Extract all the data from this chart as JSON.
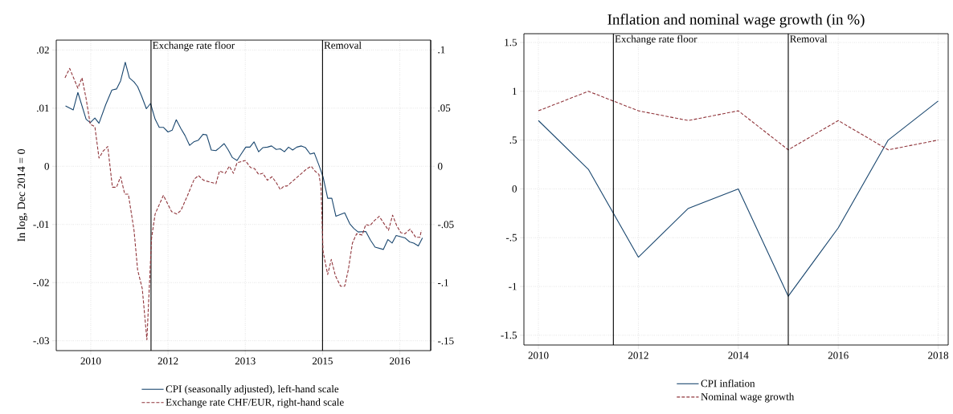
{
  "chart_data": [
    {
      "type": "line",
      "ylabel": "In log, Dec 2014 = 0",
      "xlim": [
        2009.83,
        2017.1
      ],
      "ylim": [
        -0.0317,
        0.0217
      ],
      "y2lim": [
        -0.1583,
        0.1083
      ],
      "xticks": [
        {
          "value": 2010.5,
          "label": "2010"
        },
        {
          "value": 2012,
          "label": "2012"
        },
        {
          "value": 2013.5,
          "label": "2013"
        },
        {
          "value": 2015,
          "label": "2015"
        },
        {
          "value": 2016.5,
          "label": "2016"
        }
      ],
      "yticks": [
        {
          "value": -0.03,
          "label": "-.03"
        },
        {
          "value": -0.02,
          "label": "-.02"
        },
        {
          "value": -0.01,
          "label": "-.01"
        },
        0,
        {
          "value": 0.01,
          "label": ".01"
        },
        {
          "value": 0.02,
          "label": ".02"
        }
      ],
      "y2ticks": [
        {
          "value": -0.15,
          "label": "-.15"
        },
        {
          "value": -0.1,
          "label": "-.1"
        },
        {
          "value": -0.05,
          "label": "-.05"
        },
        0,
        {
          "value": 0.05,
          "label": ".05"
        },
        {
          "value": 0.1,
          "label": ".1"
        }
      ],
      "grid": true,
      "legend": "bottom",
      "ref_lines": [
        {
          "axis": "x",
          "value": 2011.67,
          "label": "Exchange rate floor"
        },
        {
          "axis": "x",
          "value": 2015.0,
          "label": "Removal"
        }
      ],
      "series": [
        {
          "name": "CPI (seasonally adjusted), left-hand scale",
          "color": "#1a476f",
          "line_style": "solid",
          "x": [
            2010.01,
            2010.16,
            2010.25,
            2010.41,
            2010.49,
            2010.58,
            2010.66,
            2010.79,
            2010.91,
            2011.0,
            2011.08,
            2011.17,
            2011.25,
            2011.34,
            2011.41,
            2011.49,
            2011.58,
            2011.66,
            2011.75,
            2011.83,
            2011.91,
            2012.0,
            2012.08,
            2012.16,
            2012.25,
            2012.33,
            2012.42,
            2012.5,
            2012.59,
            2012.68,
            2012.75,
            2012.84,
            2012.93,
            2013.0,
            2013.09,
            2013.17,
            2013.25,
            2013.34,
            2013.42,
            2013.51,
            2013.59,
            2013.67,
            2013.76,
            2013.84,
            2013.93,
            2014.01,
            2014.1,
            2014.18,
            2014.26,
            2014.34,
            2014.42,
            2014.5,
            2014.59,
            2014.67,
            2014.76,
            2014.84,
            2014.93,
            2015.01,
            2015.1,
            2015.18,
            2015.26,
            2015.43,
            2015.53,
            2015.61,
            2015.69,
            2015.84,
            2015.93,
            2016.02,
            2016.18,
            2016.27,
            2016.35,
            2016.43,
            2016.6,
            2016.69,
            2016.77,
            2016.86,
            2016.94
          ],
          "values": [
            0.0104,
            0.0097,
            0.0127,
            0.0081,
            0.0075,
            0.0083,
            0.0074,
            0.0106,
            0.0131,
            0.0133,
            0.0147,
            0.0179,
            0.0152,
            0.0145,
            0.0137,
            0.012,
            0.0099,
            0.0108,
            0.0081,
            0.0067,
            0.0067,
            0.0059,
            0.0062,
            0.008,
            0.0065,
            0.0053,
            0.0036,
            0.0042,
            0.0045,
            0.0055,
            0.0054,
            0.0028,
            0.0027,
            0.0032,
            0.0039,
            0.0028,
            0.0015,
            0.001,
            0.0021,
            0.0033,
            0.0033,
            0.0042,
            0.0025,
            0.0032,
            0.0033,
            0.0035,
            0.0029,
            0.003,
            0.0025,
            0.0033,
            0.0028,
            0.0033,
            0.0035,
            0.0032,
            0.0021,
            0.0023,
            0.0002,
            -0.0018,
            -0.0055,
            -0.0055,
            -0.0086,
            -0.008,
            -0.0099,
            -0.0107,
            -0.0113,
            -0.0112,
            -0.0127,
            -0.0139,
            -0.0143,
            -0.0126,
            -0.0132,
            -0.0119,
            -0.0123,
            -0.013,
            -0.0132,
            -0.0137,
            -0.0123
          ]
        },
        {
          "name": "Exchange rate CHF/EUR, right-hand scale",
          "color": "#90353b",
          "line_style": "dashed",
          "axis": "y2",
          "x": [
            2010.0,
            2010.09,
            2010.25,
            2010.33,
            2010.41,
            2010.49,
            2010.58,
            2010.66,
            2010.74,
            2010.83,
            2010.92,
            2011.0,
            2011.08,
            2011.16,
            2011.23,
            2011.34,
            2011.41,
            2011.5,
            2011.59,
            2011.68,
            2011.75,
            2011.91,
            2012.07,
            2012.17,
            2012.25,
            2012.38,
            2012.51,
            2012.59,
            2012.69,
            2012.93,
            2013.0,
            2013.11,
            2013.19,
            2013.27,
            2013.34,
            2013.42,
            2013.5,
            2013.6,
            2013.68,
            2013.76,
            2013.84,
            2013.93,
            2014.02,
            2014.1,
            2014.18,
            2014.25,
            2014.31,
            2014.44,
            2014.57,
            2014.7,
            2014.78,
            2014.85,
            2014.93,
            2014.97,
            2015.01,
            2015.1,
            2015.17,
            2015.25,
            2015.35,
            2015.43,
            2015.5,
            2015.58,
            2015.66,
            2015.77,
            2015.84,
            2015.92,
            2016.0,
            2016.1,
            2016.19,
            2016.28,
            2016.36,
            2016.44,
            2016.52,
            2016.6,
            2016.7,
            2016.81,
            2016.89,
            2016.92
          ],
          "values": [
            0.076,
            0.084,
            0.067,
            0.076,
            0.058,
            0.036,
            0.034,
            0.007,
            0.013,
            0.017,
            -0.018,
            -0.018,
            -0.009,
            -0.024,
            -0.024,
            -0.055,
            -0.089,
            -0.105,
            -0.149,
            -0.062,
            -0.041,
            -0.025,
            -0.039,
            -0.041,
            -0.038,
            -0.025,
            -0.011,
            -0.008,
            -0.012,
            -0.015,
            -0.004,
            -0.006,
            0.0,
            -0.006,
            0.003,
            0.004,
            0.005,
            -0.001,
            -0.002,
            -0.007,
            -0.006,
            -0.012,
            -0.009,
            -0.014,
            -0.02,
            -0.017,
            -0.017,
            -0.012,
            -0.007,
            -0.002,
            0.0,
            -0.004,
            -0.007,
            -0.018,
            -0.073,
            -0.093,
            -0.08,
            -0.094,
            -0.103,
            -0.103,
            -0.089,
            -0.066,
            -0.058,
            -0.059,
            -0.05,
            -0.051,
            -0.047,
            -0.043,
            -0.049,
            -0.055,
            -0.042,
            -0.051,
            -0.057,
            -0.058,
            -0.054,
            -0.061,
            -0.061,
            -0.055
          ]
        }
      ]
    },
    {
      "type": "line",
      "title": "Inflation and nominal wage growth (in %)",
      "xlim": [
        2009.71,
        2018.2
      ],
      "ylim": [
        -1.6,
        1.59
      ],
      "xticks": [
        2010,
        2012,
        2014,
        2016,
        2018
      ],
      "yticks": [
        {
          "value": -1.5,
          "label": "-1.5"
        },
        {
          "value": -1,
          "label": "-1"
        },
        {
          "value": -0.5,
          "label": "-.5"
        },
        0,
        {
          "value": 0.5,
          "label": ".5"
        },
        1,
        1.5
      ],
      "grid": true,
      "legend": "bottom",
      "ref_lines": [
        {
          "axis": "x",
          "value": 2011.5,
          "label": "Exchange rate floor"
        },
        {
          "axis": "x",
          "value": 2015.0,
          "label": "Removal"
        }
      ],
      "series": [
        {
          "name": "CPI inflation",
          "color": "#1a476f",
          "line_style": "solid",
          "x": [
            2010,
            2011,
            2012,
            2013,
            2014,
            2015,
            2016,
            2017,
            2018
          ],
          "values": [
            0.7,
            0.2,
            -0.7,
            -0.2,
            0,
            -1.1,
            -0.4,
            0.5,
            0.9
          ]
        },
        {
          "name": "Nominal wage growth",
          "color": "#90353b",
          "line_style": "dashed",
          "x": [
            2010,
            2011,
            2012,
            2013,
            2014,
            2015,
            2016,
            2017,
            2018
          ],
          "values": [
            0.8,
            1,
            0.8,
            0.7,
            0.8,
            0.4,
            0.7,
            0.4,
            0.5
          ]
        }
      ]
    }
  ]
}
